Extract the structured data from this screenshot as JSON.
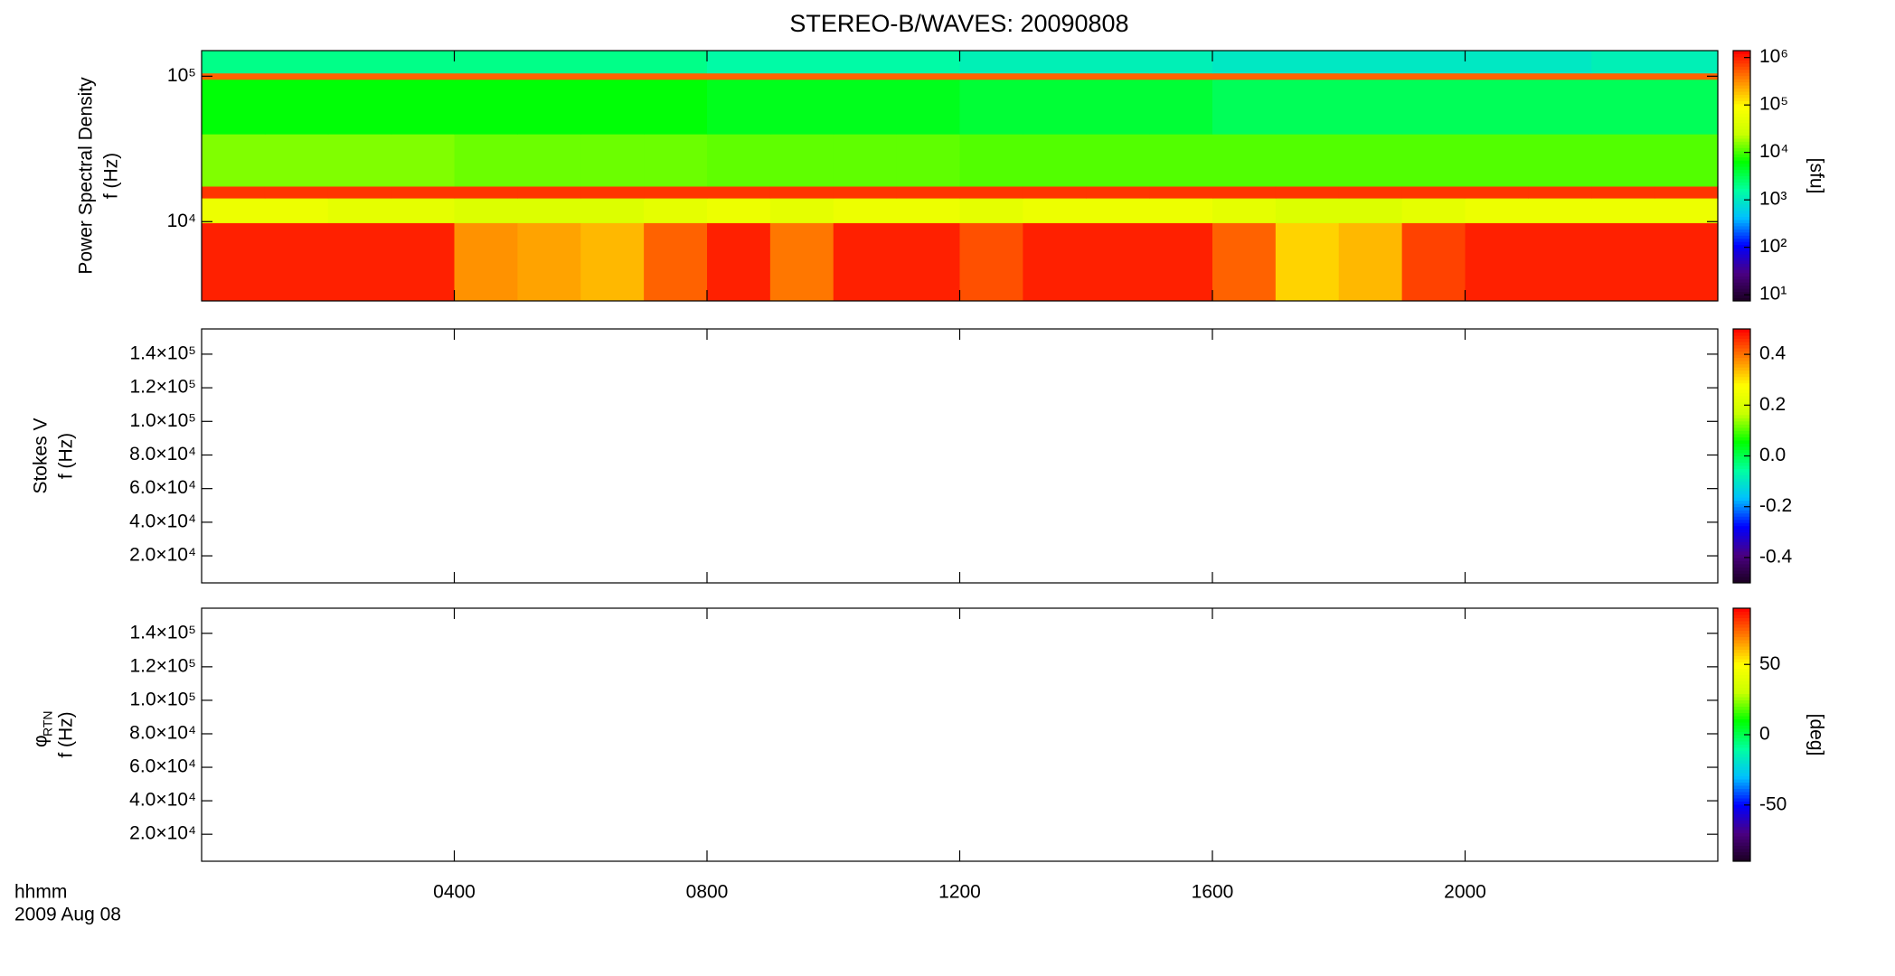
{
  "chart_data": {
    "type": "spectrogram",
    "title": "STEREO-B/WAVES: 20090808",
    "xlabel": "hhmm",
    "date": "2009 Aug 08",
    "xlim": [
      0,
      24
    ],
    "xticks": [
      {
        "value": 4,
        "label": "0400"
      },
      {
        "value": 8,
        "label": "0800"
      },
      {
        "value": 12,
        "label": "1200"
      },
      {
        "value": 16,
        "label": "1600"
      },
      {
        "value": 20,
        "label": "2000"
      }
    ],
    "colormap": [
      "#1a0020",
      "#4b0082",
      "#0000ff",
      "#00c0ff",
      "#00ffa0",
      "#00ff00",
      "#c8ff00",
      "#ffff00",
      "#ff8000",
      "#ff0000"
    ],
    "panels": [
      {
        "ylabel": [
          "Power Spectral Density",
          "f (Hz)"
        ],
        "ylog": true,
        "ylim": [
          2850,
          150000
        ],
        "yticks": [
          {
            "value": 10000,
            "label": "10⁴"
          },
          {
            "value": 100000,
            "label": "10⁵"
          }
        ],
        "clog": true,
        "clim": [
          7.4,
          1400000
        ],
        "cticks": [
          {
            "value": 10,
            "label": "10¹"
          },
          {
            "value": 100,
            "label": "10²"
          },
          {
            "value": 1000,
            "label": "10³"
          },
          {
            "value": 10000,
            "label": "10⁴"
          },
          {
            "value": 100000,
            "label": "10⁵"
          },
          {
            "value": 1000000,
            "label": "10⁶"
          }
        ],
        "colorbar_label": "[sfu]",
        "time_edges": [
          0,
          1,
          2,
          3,
          4,
          5,
          6,
          7,
          8,
          9,
          10,
          11,
          12,
          13,
          14,
          15,
          16,
          17,
          18,
          19,
          20,
          21,
          22,
          23,
          24
        ],
        "freq_edges": [
          2850,
          9800,
          14500,
          17500,
          40000,
          95000,
          105000,
          150000
        ],
        "values": [
          [
            1000000,
            1000000,
            1000000,
            1000000,
            300000,
            250000,
            200000,
            500000,
            1000000,
            400000,
            1000000,
            1000000,
            600000,
            1000000,
            1000000,
            1000000,
            500000,
            150000,
            200000,
            700000,
            1000000,
            1000000,
            1000000,
            1000000
          ],
          [
            60000,
            60000,
            50000,
            50000,
            40000,
            40000,
            40000,
            50000,
            60000,
            50000,
            60000,
            60000,
            50000,
            60000,
            60000,
            60000,
            50000,
            40000,
            40000,
            50000,
            60000,
            60000,
            60000,
            60000
          ],
          [
            800000,
            800000,
            800000,
            800000,
            800000,
            800000,
            800000,
            800000,
            800000,
            800000,
            800000,
            800000,
            800000,
            800000,
            800000,
            800000,
            800000,
            800000,
            800000,
            800000,
            800000,
            800000,
            800000,
            800000
          ],
          [
            15000,
            15000,
            15000,
            15000,
            13000,
            13000,
            13000,
            13000,
            12000,
            12000,
            12000,
            12000,
            11000,
            11000,
            11000,
            11000,
            11000,
            11000,
            11000,
            11000,
            11000,
            11000,
            11000,
            11000
          ],
          [
            6000,
            6000,
            6000,
            6000,
            6000,
            6000,
            6000,
            6000,
            5000,
            5000,
            5000,
            5000,
            4000,
            4000,
            4000,
            4000,
            3000,
            3000,
            3000,
            3000,
            3000,
            3000,
            3000,
            3000
          ],
          [
            500000,
            500000,
            500000,
            500000,
            500000,
            500000,
            500000,
            500000,
            500000,
            500000,
            500000,
            500000,
            500000,
            500000,
            500000,
            500000,
            500000,
            500000,
            500000,
            500000,
            500000,
            500000,
            500000,
            500000
          ],
          [
            2000,
            2000,
            2000,
            2000,
            2000,
            2000,
            2000,
            2000,
            1500,
            1500,
            1500,
            1500,
            1200,
            1200,
            1200,
            1200,
            1000,
            1000,
            1000,
            1000,
            1000,
            1000,
            1200,
            1200
          ]
        ]
      },
      {
        "ylabel": [
          "Stokes V",
          "f (Hz)"
        ],
        "ylog": false,
        "ylim": [
          3900,
          155000
        ],
        "yticks": [
          {
            "value": 20000,
            "label": "2.0×10⁴"
          },
          {
            "value": 40000,
            "label": "4.0×10⁴"
          },
          {
            "value": 60000,
            "label": "6.0×10⁴"
          },
          {
            "value": 80000,
            "label": "8.0×10⁴"
          },
          {
            "value": 100000,
            "label": "1.0×10⁵"
          },
          {
            "value": 120000,
            "label": "1.2×10⁵"
          },
          {
            "value": 140000,
            "label": "1.4×10⁵"
          }
        ],
        "clog": false,
        "clim": [
          -0.5,
          0.5
        ],
        "cticks": [
          -0.4,
          -0.2,
          {
            "value": 0,
            "label": "0.0"
          },
          0.2,
          0.4
        ]
      },
      {
        "ylabel": [
          "φ",
          "f (Hz)"
        ],
        "ylabel_subscript": "RTN",
        "ylog": false,
        "ylim": [
          3900,
          155000
        ],
        "yticks": [
          {
            "value": 20000,
            "label": "2.0×10⁴"
          },
          {
            "value": 40000,
            "label": "4.0×10⁴"
          },
          {
            "value": 60000,
            "label": "6.0×10⁴"
          },
          {
            "value": 80000,
            "label": "8.0×10⁴"
          },
          {
            "value": 100000,
            "label": "1.0×10⁵"
          },
          {
            "value": 120000,
            "label": "1.2×10⁵"
          },
          {
            "value": 140000,
            "label": "1.4×10⁵"
          }
        ],
        "clog": false,
        "clim": [
          -90,
          90
        ],
        "cticks": [
          -50,
          0,
          50
        ],
        "colorbar_label": "[deg]"
      }
    ]
  }
}
